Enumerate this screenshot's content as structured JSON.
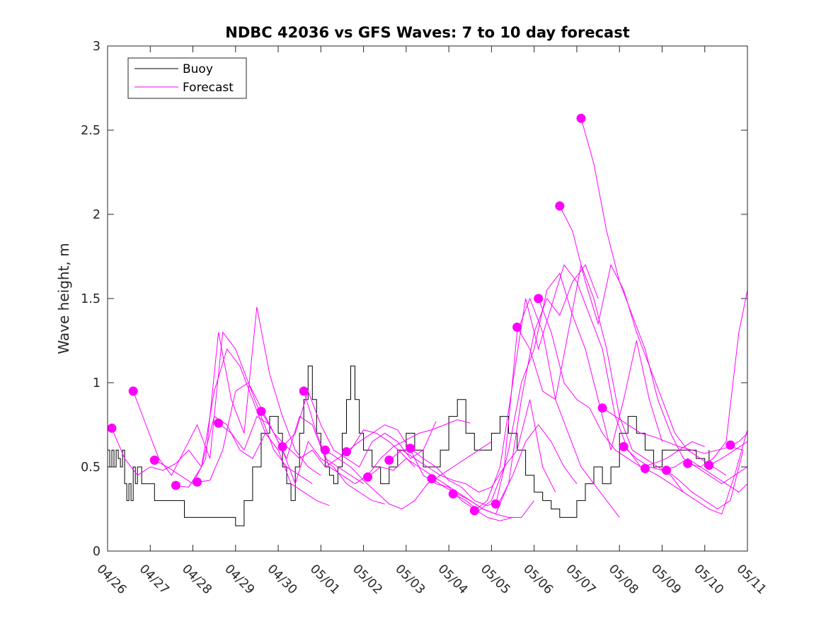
{
  "chart_data": {
    "type": "line",
    "title": "NDBC 42036 vs GFS Waves: 7 to 10 day forecast",
    "ylabel": "Wave height, m",
    "xlabel": "",
    "xlim": [
      0,
      15
    ],
    "ylim": [
      0,
      3
    ],
    "xticks": [
      0,
      1,
      2,
      3,
      4,
      5,
      6,
      7,
      8,
      9,
      10,
      11,
      12,
      13,
      14,
      15
    ],
    "xtick_labels": [
      "04/26",
      "04/27",
      "04/28",
      "04/29",
      "04/30",
      "05/01",
      "05/02",
      "05/03",
      "05/04",
      "05/05",
      "05/06",
      "05/07",
      "05/08",
      "05/09",
      "05/10",
      "05/11"
    ],
    "yticks": [
      0,
      0.5,
      1,
      1.5,
      2,
      2.5,
      3
    ],
    "ytick_labels": [
      "0",
      "0.5",
      "1",
      "1.5",
      "2",
      "2.5",
      "3"
    ],
    "legend": {
      "position": "top-left",
      "entries": [
        {
          "label": "Buoy",
          "color": "#000000"
        },
        {
          "label": "Forecast",
          "color": "#ff00ff"
        }
      ]
    },
    "colors": {
      "buoy": "#000000",
      "forecast": "#ff00ff",
      "axes": "#262626"
    },
    "buoy": {
      "name": "Buoy",
      "x": [
        0,
        0.05,
        0.1,
        0.15,
        0.2,
        0.25,
        0.3,
        0.35,
        0.4,
        0.45,
        0.5,
        0.55,
        0.6,
        0.65,
        0.7,
        0.8,
        0.9,
        1.0,
        1.1,
        1.2,
        1.4,
        1.6,
        1.8,
        2.0,
        2.2,
        2.4,
        2.6,
        2.8,
        3.0,
        3.2,
        3.4,
        3.6,
        3.8,
        4.0,
        4.1,
        4.2,
        4.3,
        4.4,
        4.5,
        4.6,
        4.7,
        4.8,
        4.9,
        5.0,
        5.1,
        5.2,
        5.3,
        5.4,
        5.5,
        5.6,
        5.7,
        5.8,
        5.9,
        6.0,
        6.2,
        6.4,
        6.6,
        6.8,
        7.0,
        7.2,
        7.4,
        7.6,
        7.8,
        8.0,
        8.2,
        8.4,
        8.6,
        8.8,
        9.0,
        9.2,
        9.4,
        9.6,
        9.8,
        10.0,
        10.2,
        10.4,
        10.6,
        10.8,
        11.0,
        11.2,
        11.4,
        11.6,
        11.8,
        12.0,
        12.2,
        12.4,
        12.6,
        12.8,
        13.0,
        13.2,
        13.4,
        13.6,
        13.8,
        14.0,
        14.1
      ],
      "y": [
        0.6,
        0.5,
        0.6,
        0.5,
        0.6,
        0.55,
        0.5,
        0.6,
        0.4,
        0.3,
        0.4,
        0.3,
        0.5,
        0.4,
        0.5,
        0.4,
        0.4,
        0.4,
        0.3,
        0.3,
        0.3,
        0.3,
        0.2,
        0.2,
        0.2,
        0.2,
        0.2,
        0.2,
        0.15,
        0.3,
        0.5,
        0.7,
        0.8,
        0.7,
        0.5,
        0.4,
        0.3,
        0.5,
        0.7,
        0.9,
        1.1,
        0.9,
        0.7,
        0.6,
        0.5,
        0.45,
        0.4,
        0.5,
        0.7,
        0.9,
        1.1,
        0.9,
        0.7,
        0.6,
        0.5,
        0.4,
        0.5,
        0.6,
        0.7,
        0.6,
        0.5,
        0.5,
        0.6,
        0.8,
        0.9,
        0.7,
        0.6,
        0.6,
        0.7,
        0.8,
        0.7,
        0.6,
        0.45,
        0.35,
        0.3,
        0.25,
        0.2,
        0.2,
        0.3,
        0.4,
        0.5,
        0.4,
        0.5,
        0.7,
        0.8,
        0.7,
        0.6,
        0.5,
        0.6,
        0.6,
        0.6,
        0.6,
        0.55,
        0.5,
        0.6
      ]
    },
    "forecast_series": [
      {
        "x": [
          0.1,
          0.4,
          0.7,
          1.0,
          1.3,
          1.6,
          1.9,
          2.2,
          2.5,
          2.8,
          3.1,
          3.4,
          3.7,
          4.0
        ],
        "y": [
          0.73,
          0.55,
          0.45,
          0.5,
          0.48,
          0.52,
          0.6,
          0.5,
          0.95,
          1.2,
          1.1,
          0.9,
          0.7,
          0.6
        ]
      },
      {
        "x": [
          0.6,
          0.9,
          1.2,
          1.5,
          1.8,
          2.1,
          2.4,
          2.7,
          3.0,
          3.3,
          3.6,
          3.9,
          4.2,
          4.5,
          4.8
        ],
        "y": [
          0.95,
          0.75,
          0.55,
          0.45,
          0.6,
          0.75,
          0.55,
          1.3,
          1.2,
          1.0,
          0.8,
          0.6,
          0.5,
          0.45,
          0.4
        ]
      },
      {
        "x": [
          1.1,
          1.4,
          1.7,
          2.0,
          2.3,
          2.6,
          2.9,
          3.2,
          3.5,
          3.8,
          4.1,
          4.4,
          4.7,
          5.0
        ],
        "y": [
          0.54,
          0.5,
          0.45,
          0.4,
          0.55,
          1.3,
          0.9,
          0.7,
          1.45,
          1.05,
          0.8,
          0.6,
          0.5,
          0.45
        ]
      },
      {
        "x": [
          1.6,
          1.9,
          2.2,
          2.5,
          2.8,
          3.1,
          3.4,
          3.7,
          4.0,
          4.3,
          4.6,
          4.9,
          5.2
        ],
        "y": [
          0.39,
          0.38,
          0.5,
          0.8,
          0.75,
          0.6,
          0.55,
          0.7,
          0.6,
          0.4,
          0.35,
          0.3,
          0.27
        ]
      },
      {
        "x": [
          2.1,
          2.4,
          2.7,
          3.0,
          3.3,
          3.6,
          3.9,
          4.2,
          4.5,
          4.8,
          5.1,
          5.4,
          5.7,
          6.0
        ],
        "y": [
          0.41,
          0.42,
          0.6,
          0.95,
          1.0,
          0.85,
          0.7,
          0.55,
          0.8,
          0.75,
          0.55,
          0.5,
          0.45,
          0.4
        ]
      },
      {
        "x": [
          2.6,
          2.9,
          3.2,
          3.5,
          3.8,
          4.1,
          4.4,
          4.7,
          5.0,
          5.3,
          5.6,
          5.9,
          6.2,
          6.5
        ],
        "y": [
          0.76,
          0.7,
          0.6,
          0.8,
          0.75,
          0.6,
          0.4,
          0.65,
          0.55,
          0.5,
          0.4,
          0.35,
          0.3,
          0.28
        ]
      },
      {
        "x": [
          3.6,
          3.9,
          4.2,
          4.5,
          4.8,
          5.1,
          5.4,
          5.7,
          6.0,
          6.3,
          6.6,
          6.9,
          7.2
        ],
        "y": [
          0.83,
          0.7,
          0.62,
          0.55,
          0.6,
          0.5,
          0.55,
          0.6,
          0.72,
          0.7,
          0.65,
          0.58,
          0.5
        ]
      },
      {
        "x": [
          4.1,
          4.4,
          4.7,
          5.0,
          5.3,
          5.6,
          5.9,
          6.2,
          6.5,
          6.8,
          7.1,
          7.4,
          7.7
        ],
        "y": [
          0.62,
          0.7,
          0.95,
          0.75,
          0.6,
          0.55,
          0.5,
          0.65,
          0.7,
          0.65,
          0.55,
          0.6,
          0.77
        ]
      },
      {
        "x": [
          4.6,
          4.9,
          5.2,
          5.5,
          5.8,
          6.1,
          6.4,
          6.7,
          7.0,
          7.3,
          7.6,
          7.9,
          8.2,
          8.5
        ],
        "y": [
          0.95,
          0.7,
          0.5,
          0.45,
          0.4,
          0.45,
          0.55,
          0.62,
          0.66,
          0.7,
          0.72,
          0.75,
          0.78,
          0.76
        ]
      },
      {
        "x": [
          5.1,
          5.4,
          5.7,
          6.0,
          6.3,
          6.6,
          6.9,
          7.2,
          7.5,
          7.8,
          8.1,
          8.4,
          8.7,
          9.0
        ],
        "y": [
          0.6,
          0.55,
          0.5,
          0.42,
          0.35,
          0.28,
          0.25,
          0.3,
          0.4,
          0.45,
          0.5,
          0.55,
          0.6,
          0.65
        ]
      },
      {
        "x": [
          5.6,
          5.9,
          6.2,
          6.5,
          6.8,
          7.1,
          7.4,
          7.7,
          8.0,
          8.3,
          8.6,
          8.9,
          9.2,
          9.5
        ],
        "y": [
          0.59,
          0.65,
          0.7,
          0.75,
          0.72,
          0.6,
          0.45,
          0.4,
          0.38,
          0.3,
          0.25,
          0.2,
          0.18,
          0.2
        ]
      },
      {
        "x": [
          6.1,
          6.4,
          6.7,
          7.0,
          7.3,
          7.6,
          7.9,
          8.2,
          8.5,
          8.8,
          9.1,
          9.4,
          9.7,
          10.0
        ],
        "y": [
          0.44,
          0.5,
          0.48,
          0.55,
          0.5,
          0.45,
          0.4,
          0.35,
          0.3,
          0.25,
          0.22,
          0.2,
          0.2,
          0.3
        ]
      },
      {
        "x": [
          6.6,
          6.9,
          7.2,
          7.5,
          7.8,
          8.1,
          8.4,
          8.7,
          9.0,
          9.3,
          9.6,
          9.9,
          10.2,
          10.5
        ],
        "y": [
          0.54,
          0.6,
          0.55,
          0.5,
          0.45,
          0.42,
          0.4,
          0.35,
          0.38,
          0.5,
          0.6,
          0.9,
          0.5,
          0.35
        ]
      },
      {
        "x": [
          7.1,
          7.4,
          7.7,
          8.0,
          8.3,
          8.6,
          8.9,
          9.2,
          9.5,
          9.8,
          10.1,
          10.4,
          10.7,
          11.0
        ],
        "y": [
          0.61,
          0.55,
          0.5,
          0.42,
          0.38,
          0.3,
          0.27,
          0.3,
          0.45,
          0.65,
          0.75,
          0.65,
          0.5,
          0.4
        ]
      },
      {
        "x": [
          7.6,
          7.9,
          8.2,
          8.5,
          8.8,
          9.1,
          9.4,
          9.7,
          10.0,
          10.3,
          10.6,
          10.9,
          11.2,
          11.5
        ],
        "y": [
          0.43,
          0.38,
          0.34,
          0.3,
          0.25,
          0.22,
          0.4,
          0.9,
          1.3,
          1.5,
          1.4,
          1.6,
          1.7,
          1.5
        ]
      },
      {
        "x": [
          8.1,
          8.4,
          8.7,
          9.0,
          9.3,
          9.6,
          9.9,
          10.2,
          10.5,
          10.8,
          11.1,
          11.4,
          11.7,
          12.0
        ],
        "y": [
          0.34,
          0.3,
          0.24,
          0.3,
          0.5,
          1.3,
          1.5,
          1.3,
          0.9,
          0.7,
          0.5,
          0.4,
          0.3,
          0.2
        ]
      },
      {
        "x": [
          8.6,
          8.9,
          9.2,
          9.5,
          9.8,
          10.1,
          10.4,
          10.7,
          11.0,
          11.3,
          11.6,
          11.9,
          12.2,
          12.5
        ],
        "y": [
          0.24,
          0.3,
          0.5,
          1.0,
          1.5,
          1.2,
          1.45,
          1.7,
          1.6,
          1.4,
          1.2,
          0.8,
          0.6,
          0.5
        ]
      },
      {
        "x": [
          9.1,
          9.4,
          9.7,
          10.0,
          10.3,
          10.6,
          10.9,
          11.2,
          11.5,
          11.8,
          12.1,
          12.4,
          12.7,
          13.0
        ],
        "y": [
          0.28,
          0.6,
          1.0,
          1.2,
          1.55,
          1.65,
          1.4,
          1.2,
          0.9,
          0.6,
          0.9,
          1.25,
          0.9,
          0.65
        ]
      },
      {
        "x": [
          9.6,
          9.9,
          10.2,
          10.5,
          10.8,
          11.1,
          11.4,
          11.7,
          12.0,
          12.3,
          12.6,
          12.9,
          13.2,
          13.5
        ],
        "y": [
          1.33,
          1.2,
          0.95,
          0.9,
          1.3,
          1.7,
          1.5,
          1.2,
          0.8,
          0.6,
          0.55,
          0.5,
          0.45,
          0.35
        ]
      },
      {
        "x": [
          10.1,
          10.4,
          10.7,
          11.0,
          11.3,
          11.6,
          11.9,
          12.2,
          12.5,
          12.8,
          13.1,
          13.4,
          13.7,
          14.0
        ],
        "y": [
          1.5,
          1.3,
          1.0,
          0.9,
          0.85,
          0.7,
          0.6,
          0.55,
          0.5,
          0.52,
          0.55,
          0.6,
          0.65,
          0.62
        ]
      },
      {
        "x": [
          10.6,
          10.9,
          11.2,
          11.5,
          11.8,
          12.1,
          12.4,
          12.7,
          13.0,
          13.3,
          13.6,
          13.9,
          14.2,
          14.5
        ],
        "y": [
          2.05,
          1.9,
          1.6,
          1.35,
          1.7,
          1.55,
          1.3,
          1.1,
          0.9,
          0.7,
          0.6,
          0.55,
          0.5,
          0.45
        ]
      },
      {
        "x": [
          11.1,
          11.4,
          11.7,
          12.0,
          12.3,
          12.6,
          12.9,
          13.2,
          13.5,
          13.8,
          14.1,
          14.4,
          14.7,
          15.0
        ],
        "y": [
          2.57,
          2.3,
          1.9,
          1.6,
          1.4,
          1.2,
          0.9,
          0.7,
          0.55,
          0.5,
          0.45,
          0.4,
          0.45,
          0.5
        ]
      },
      {
        "x": [
          11.6,
          11.9,
          12.2,
          12.5,
          12.8,
          13.1,
          13.4,
          13.7,
          14.0,
          14.3,
          14.6,
          14.9
        ],
        "y": [
          0.85,
          0.8,
          0.75,
          0.7,
          0.68,
          0.65,
          0.62,
          0.6,
          0.58,
          0.6,
          0.62,
          0.6
        ]
      },
      {
        "x": [
          12.1,
          12.4,
          12.7,
          13.0,
          13.3,
          13.6,
          13.9,
          14.2,
          14.5,
          14.8,
          15.0
        ],
        "y": [
          0.62,
          0.55,
          0.5,
          0.48,
          0.5,
          0.55,
          0.5,
          0.45,
          0.4,
          0.35,
          0.4
        ]
      },
      {
        "x": [
          12.6,
          12.9,
          13.2,
          13.5,
          13.8,
          14.1,
          14.4,
          14.7,
          15.0
        ],
        "y": [
          0.49,
          0.45,
          0.4,
          0.35,
          0.3,
          0.25,
          0.22,
          0.45,
          0.72
        ]
      },
      {
        "x": [
          13.1,
          13.4,
          13.7,
          14.0,
          14.3,
          14.6,
          14.9
        ],
        "y": [
          0.48,
          0.42,
          0.35,
          0.3,
          0.25,
          0.3,
          0.6
        ]
      },
      {
        "x": [
          13.6,
          13.9,
          14.2,
          14.5,
          14.8,
          15.0
        ],
        "y": [
          0.52,
          0.5,
          0.55,
          0.65,
          1.3,
          1.55
        ]
      },
      {
        "x": [
          14.1,
          14.4,
          14.7,
          15.0
        ],
        "y": [
          0.51,
          0.55,
          0.6,
          0.65
        ]
      },
      {
        "x": [
          14.6,
          14.8,
          15.0
        ],
        "y": [
          0.63,
          0.65,
          0.7
        ]
      }
    ]
  }
}
